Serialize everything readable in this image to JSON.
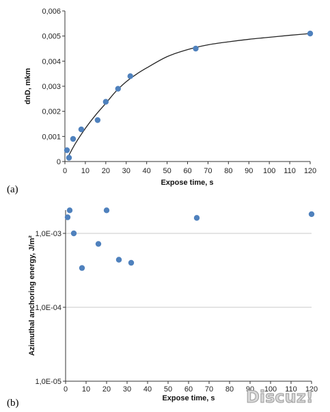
{
  "chart_data": [
    {
      "type": "scatter",
      "panel_label": "(a)",
      "xlabel": "Expose time, s",
      "ylabel": "dnD, mkm",
      "xlim": [
        0,
        120
      ],
      "ylim": [
        0,
        0.006
      ],
      "x_ticks": [
        "0",
        "10",
        "20",
        "30",
        "40",
        "50",
        "60",
        "70",
        "80",
        "90",
        "100",
        "110",
        "120"
      ],
      "y_ticks": [
        "0",
        "0,001",
        "0,002",
        "0,003",
        "0,004",
        "0,005",
        "0,006"
      ],
      "grid": false,
      "series": [
        {
          "marker_color": "#4f81bd",
          "points": [
            {
              "x": 1,
              "y": 0.00045
            },
            {
              "x": 2,
              "y": 0.00015
            },
            {
              "x": 4,
              "y": 0.0009
            },
            {
              "x": 8,
              "y": 0.00128
            },
            {
              "x": 16,
              "y": 0.00165
            },
            {
              "x": 20,
              "y": 0.00238
            },
            {
              "x": 26,
              "y": 0.0029
            },
            {
              "x": 32,
              "y": 0.0034
            },
            {
              "x": 64,
              "y": 0.0045
            },
            {
              "x": 120,
              "y": 0.0051
            }
          ]
        }
      ],
      "fit_line": {
        "color": "#222222",
        "points": [
          {
            "x": 1,
            "y": 0.0001
          },
          {
            "x": 5,
            "y": 0.0007
          },
          {
            "x": 10,
            "y": 0.00132
          },
          {
            "x": 15,
            "y": 0.00185
          },
          {
            "x": 20,
            "y": 0.00232
          },
          {
            "x": 25,
            "y": 0.0028
          },
          {
            "x": 30,
            "y": 0.00318
          },
          {
            "x": 35,
            "y": 0.00348
          },
          {
            "x": 40,
            "y": 0.00373
          },
          {
            "x": 50,
            "y": 0.00418
          },
          {
            "x": 60,
            "y": 0.00446
          },
          {
            "x": 70,
            "y": 0.00465
          },
          {
            "x": 80,
            "y": 0.00477
          },
          {
            "x": 90,
            "y": 0.00487
          },
          {
            "x": 100,
            "y": 0.00495
          },
          {
            "x": 110,
            "y": 0.00503
          },
          {
            "x": 120,
            "y": 0.0051
          }
        ]
      }
    },
    {
      "type": "scatter",
      "panel_label": "(b)",
      "xlabel": "Expose time, s",
      "ylabel": "Azimuthal anchoring energy, J/m²",
      "xlim": [
        0,
        120
      ],
      "ylim": [
        1e-05,
        0.002
      ],
      "y_scale": "log",
      "x_ticks": [
        "0",
        "10",
        "20",
        "30",
        "40",
        "50",
        "60",
        "70",
        "80",
        "90",
        "100",
        "110",
        "120"
      ],
      "y_ticks": [
        {
          "value": 1e-05,
          "label": "1,0E-05"
        },
        {
          "value": 0.0001,
          "label": "1,0E-04"
        },
        {
          "value": 0.001,
          "label": "1,0E-03"
        }
      ],
      "grid": true,
      "series": [
        {
          "marker_color": "#4f81bd",
          "points": [
            {
              "x": 1,
              "y": 0.00165
            },
            {
              "x": 2,
              "y": 0.00205
            },
            {
              "x": 4,
              "y": 0.001
            },
            {
              "x": 8,
              "y": 0.00034
            },
            {
              "x": 16,
              "y": 0.00072
            },
            {
              "x": 20,
              "y": 0.00205
            },
            {
              "x": 26,
              "y": 0.00044
            },
            {
              "x": 32,
              "y": 0.0004
            },
            {
              "x": 64,
              "y": 0.00162
            },
            {
              "x": 120,
              "y": 0.00182
            }
          ]
        }
      ]
    }
  ],
  "watermark": {
    "text": "Discuz!"
  },
  "colors": {
    "marker": "#4f81bd",
    "axis": "#333333",
    "grid": "#c8c8c8",
    "fit": "#222222"
  }
}
